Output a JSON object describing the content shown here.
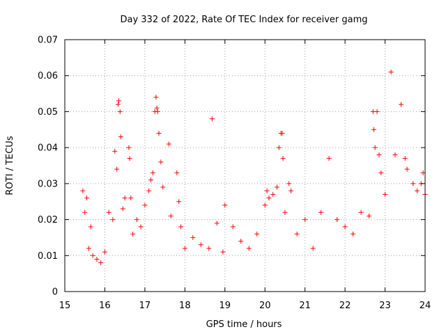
{
  "chart_data": {
    "type": "scatter",
    "title": "Day 332 of 2022, Rate Of TEC Index for receiver gamg",
    "xlabel": "GPS time / hours",
    "ylabel": "ROTI / TECUs",
    "xlim": [
      15,
      24
    ],
    "ylim": [
      0,
      0.07
    ],
    "x_ticks": [
      15,
      16,
      17,
      18,
      19,
      20,
      21,
      22,
      23,
      24
    ],
    "x_tick_labels": [
      "15",
      "16",
      "17",
      "18",
      "19",
      "20",
      "21",
      "22",
      "23",
      "24"
    ],
    "y_ticks": [
      0,
      0.01,
      0.02,
      0.03,
      0.04,
      0.05,
      0.06,
      0.07
    ],
    "y_tick_labels": [
      "0",
      "0.01",
      "0.02",
      "0.03",
      "0.04",
      "0.05",
      "0.06",
      "0.07"
    ],
    "grid": true,
    "marker": "plus",
    "marker_color": "#ff0000",
    "points_estimated": {
      "x": [
        15.45,
        15.5,
        15.55,
        15.6,
        15.65,
        15.7,
        15.8,
        15.9,
        16.0,
        16.1,
        16.2,
        16.25,
        16.3,
        16.33,
        16.35,
        16.38,
        16.4,
        16.45,
        16.5,
        16.6,
        16.62,
        16.65,
        16.7,
        16.8,
        16.9,
        17.0,
        17.1,
        17.15,
        17.2,
        17.25,
        17.28,
        17.3,
        17.32,
        17.35,
        17.4,
        17.45,
        17.6,
        17.65,
        17.8,
        17.85,
        17.9,
        18.0,
        18.2,
        18.4,
        18.6,
        18.68,
        18.8,
        18.95,
        19.0,
        19.2,
        19.4,
        19.6,
        19.8,
        20.0,
        20.05,
        20.1,
        20.2,
        20.3,
        20.35,
        20.4,
        20.43,
        20.45,
        20.5,
        20.6,
        20.65,
        20.8,
        21.0,
        21.2,
        21.4,
        21.6,
        21.8,
        22.0,
        22.2,
        22.4,
        22.6,
        22.7,
        22.72,
        22.75,
        22.8,
        22.85,
        22.9,
        23.0,
        23.15,
        23.25,
        23.4,
        23.5,
        23.55,
        23.7,
        23.8,
        23.9,
        23.95,
        24.0
      ],
      "y": [
        0.028,
        0.022,
        0.026,
        0.012,
        0.018,
        0.01,
        0.009,
        0.008,
        0.011,
        0.022,
        0.02,
        0.039,
        0.034,
        0.052,
        0.053,
        0.05,
        0.043,
        0.023,
        0.026,
        0.04,
        0.037,
        0.026,
        0.016,
        0.02,
        0.018,
        0.024,
        0.028,
        0.031,
        0.033,
        0.05,
        0.054,
        0.051,
        0.05,
        0.044,
        0.036,
        0.029,
        0.041,
        0.021,
        0.033,
        0.025,
        0.018,
        0.012,
        0.015,
        0.013,
        0.012,
        0.048,
        0.019,
        0.011,
        0.024,
        0.018,
        0.014,
        0.012,
        0.016,
        0.024,
        0.028,
        0.026,
        0.027,
        0.029,
        0.04,
        0.044,
        0.044,
        0.037,
        0.022,
        0.03,
        0.028,
        0.016,
        0.02,
        0.012,
        0.022,
        0.037,
        0.02,
        0.018,
        0.016,
        0.022,
        0.021,
        0.05,
        0.045,
        0.04,
        0.05,
        0.038,
        0.033,
        0.027,
        0.061,
        0.038,
        0.052,
        0.037,
        0.034,
        0.03,
        0.028,
        0.03,
        0.033,
        0.027
      ]
    }
  }
}
